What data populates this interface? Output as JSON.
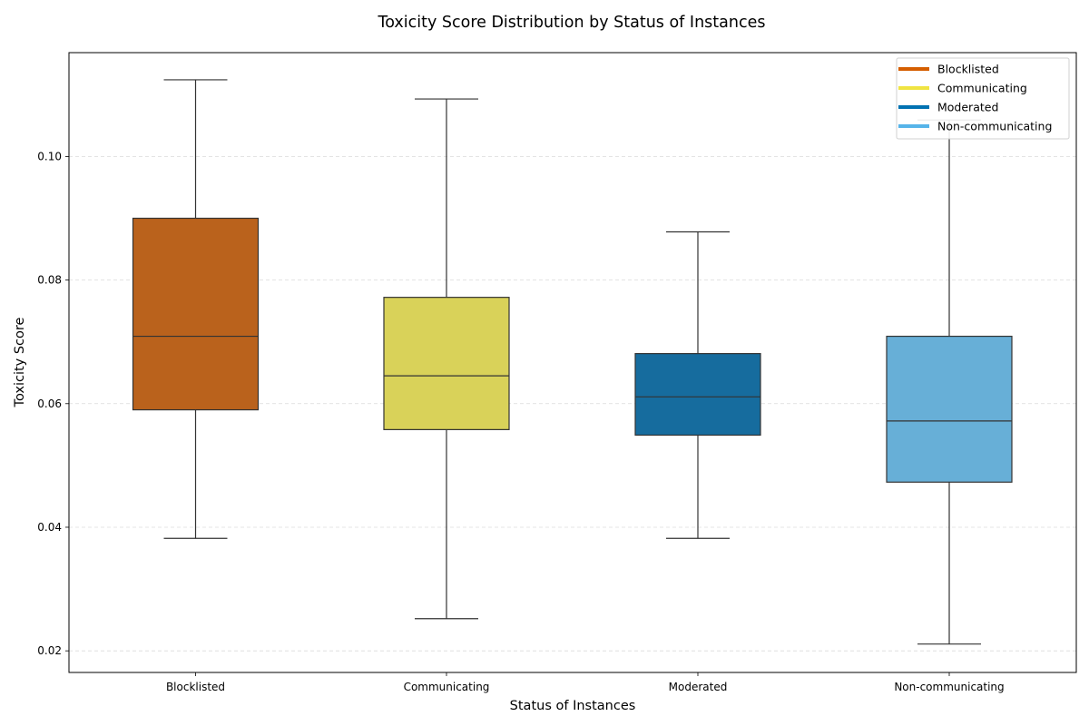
{
  "chart_data": {
    "type": "box",
    "title": "Toxicity Score Distribution by Status of Instances",
    "xlabel": "Status of Instances",
    "ylabel": "Toxicity Score",
    "ylim": [
      0.0165,
      0.1168
    ],
    "yticks": [
      "0.02",
      "0.04",
      "0.06",
      "0.08",
      "0.10"
    ],
    "ytick_values": [
      0.02,
      0.04,
      0.06,
      0.08,
      0.1
    ],
    "grid": "horizontal dashed",
    "legend_position": "top-right",
    "categories": [
      "Blocklisted",
      "Communicating",
      "Moderated",
      "Non-communicating"
    ],
    "series": [
      {
        "name": "Blocklisted",
        "color": "#BA621C",
        "legend_color": "#D55E00",
        "whisker_low": 0.0382,
        "q1": 0.059,
        "median": 0.0709,
        "q3": 0.09,
        "whisker_high": 0.1124
      },
      {
        "name": "Communicating",
        "color": "#D9D259",
        "legend_color": "#F0E442",
        "whisker_low": 0.0252,
        "q1": 0.0558,
        "median": 0.0645,
        "q3": 0.0772,
        "whisker_high": 0.1093
      },
      {
        "name": "Moderated",
        "color": "#166C9E",
        "legend_color": "#0072B2",
        "whisker_low": 0.0382,
        "q1": 0.0549,
        "median": 0.0611,
        "q3": 0.0681,
        "whisker_high": 0.0878
      },
      {
        "name": "Non-communicating",
        "color": "#67AFD7",
        "legend_color": "#56B4E9",
        "whisker_low": 0.0211,
        "q1": 0.0473,
        "median": 0.0572,
        "q3": 0.0709,
        "whisker_high": 0.1059
      }
    ]
  }
}
